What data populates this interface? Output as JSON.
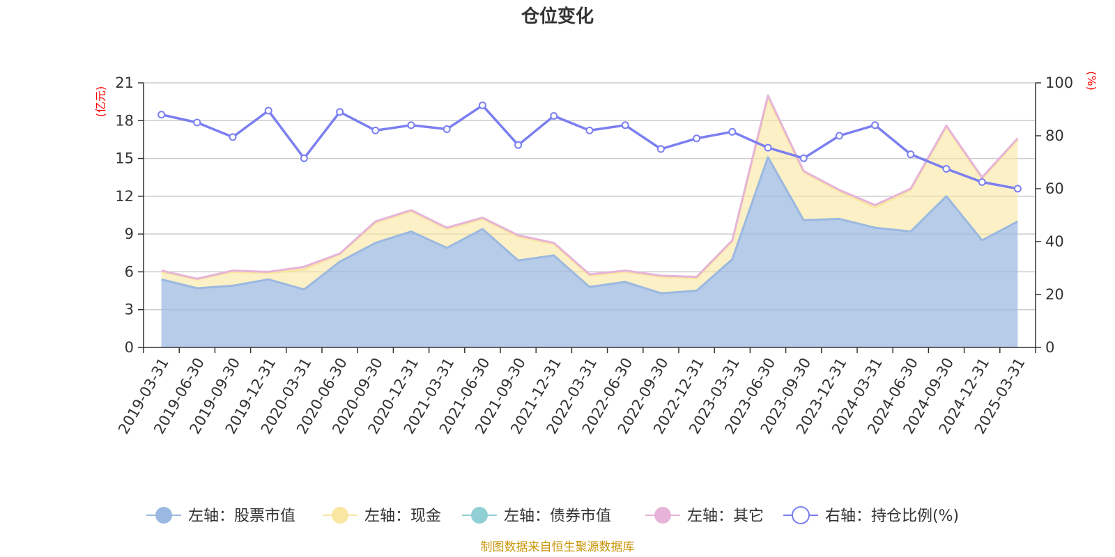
{
  "chart_data": {
    "type": "area",
    "title": "仓位变化",
    "left_unit": "(亿元)",
    "right_unit": "(%)",
    "categories": [
      "2019-03-31",
      "2019-06-30",
      "2019-09-30",
      "2019-12-31",
      "2020-03-31",
      "2020-06-30",
      "2020-09-30",
      "2020-12-31",
      "2021-03-31",
      "2021-06-30",
      "2021-09-30",
      "2021-12-31",
      "2022-03-31",
      "2022-06-30",
      "2022-09-30",
      "2022-12-31",
      "2023-03-31",
      "2023-06-30",
      "2023-09-30",
      "2023-12-31",
      "2024-03-31",
      "2024-06-30",
      "2024-09-30",
      "2024-12-31",
      "2025-03-31"
    ],
    "left_axis": {
      "min": 0,
      "max": 21,
      "ticks": [
        0,
        3,
        6,
        9,
        12,
        15,
        18,
        21
      ]
    },
    "right_axis": {
      "min": 0,
      "max": 100,
      "ticks": [
        0,
        20,
        40,
        60,
        80,
        100
      ]
    },
    "series": [
      {
        "name": "左轴：股票市值",
        "axis": "left",
        "stack": true,
        "color": "#9bb8e0",
        "values": [
          5.4,
          4.7,
          4.9,
          5.4,
          4.6,
          6.8,
          8.3,
          9.2,
          7.9,
          9.4,
          6.9,
          7.3,
          4.8,
          5.2,
          4.3,
          4.5,
          7.0,
          15.1,
          10.1,
          10.2,
          9.5,
          9.2,
          12.0,
          8.5,
          10.0
        ]
      },
      {
        "name": "左轴：现金",
        "axis": "left",
        "stack": true,
        "color": "#f9e6a0",
        "values": [
          0.6,
          0.7,
          1.1,
          0.5,
          1.6,
          0.6,
          1.6,
          1.6,
          1.5,
          0.8,
          1.9,
          0.9,
          0.9,
          0.8,
          1.3,
          1.0,
          1.4,
          4.7,
          3.8,
          2.2,
          1.6,
          3.3,
          5.5,
          4.9,
          6.5
        ]
      },
      {
        "name": "左轴：债券市值",
        "axis": "left",
        "stack": true,
        "color": "#90d0d4",
        "values": [
          0,
          0,
          0,
          0,
          0,
          0,
          0,
          0,
          0,
          0,
          0,
          0,
          0,
          0,
          0,
          0,
          0,
          0,
          0,
          0,
          0,
          0,
          0,
          0,
          0
        ]
      },
      {
        "name": "左轴：其它",
        "axis": "left",
        "stack": true,
        "color": "#e6b4d8",
        "values": [
          0.1,
          0.05,
          0.1,
          0.1,
          0.2,
          0.05,
          0.1,
          0.1,
          0.1,
          0.1,
          0.1,
          0.1,
          0.1,
          0.1,
          0.1,
          0.1,
          0.1,
          0.2,
          0.1,
          0.1,
          0.2,
          0.1,
          0.1,
          0.1,
          0.1
        ]
      },
      {
        "name": "右轴：持仓比例(%)",
        "axis": "right",
        "type": "line",
        "color": "#7b7ff0",
        "values": [
          88,
          85,
          79.5,
          89.5,
          71.5,
          89,
          82,
          84,
          82.5,
          91.5,
          76.5,
          87.5,
          82,
          84,
          75,
          79,
          81.5,
          75.5,
          71.5,
          80,
          84,
          73,
          67.5,
          62.5,
          60
        ]
      }
    ],
    "legend_position": "bottom",
    "grid": true
  },
  "source_text": "制图数据来自恒生聚源数据库"
}
